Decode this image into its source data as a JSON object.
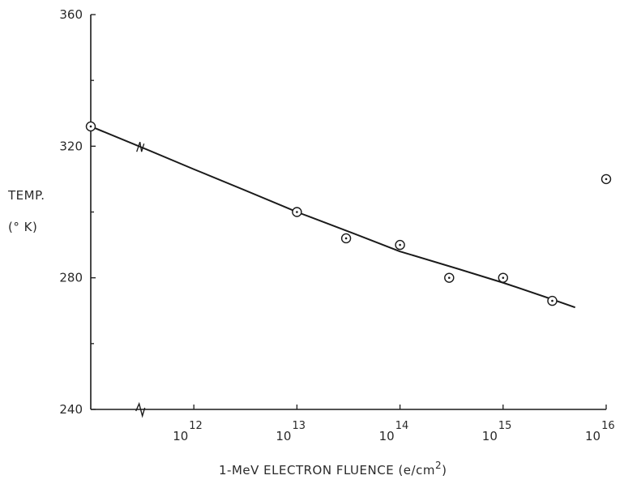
{
  "chart_data": {
    "type": "scatter",
    "title": "",
    "xlabel": "1-MeV ELECTRON FLUENCE (e/cm2)",
    "xlabel_main": "1-MeV ELECTRON FLUENCE (e/cm",
    "xlabel_sup": "2",
    "xlabel_tail": ")",
    "ylabel_line1": "TEMP.",
    "ylabel_line2": "(° K)",
    "x_scale": "log",
    "xlim": [
      "10^11",
      "10^16"
    ],
    "ylim": [
      240,
      360
    ],
    "y_ticks": [
      240,
      280,
      320,
      360
    ],
    "x_ticks": [
      {
        "base": "10",
        "exp": "12",
        "value": 1000000000000.0
      },
      {
        "base": "10",
        "exp": "13",
        "value": 10000000000000.0
      },
      {
        "base": "10",
        "exp": "14",
        "value": 100000000000000.0
      },
      {
        "base": "10",
        "exp": "15",
        "value": 1000000000000000.0
      },
      {
        "base": "10",
        "exp": "16",
        "value": 1e+16
      }
    ],
    "axis_breaks": "x-axis and y-axis broken near 3×10^11",
    "grid": false,
    "legend": "none",
    "series": [
      {
        "kind": "measured points",
        "marker": "circle-dot",
        "points": [
          {
            "x": 100000000000.0,
            "y": 326
          },
          {
            "x": 10000000000000.0,
            "y": 300
          },
          {
            "x": 30000000000000.0,
            "y": 292
          },
          {
            "x": 100000000000000.0,
            "y": 290
          },
          {
            "x": 300000000000000.0,
            "y": 280
          },
          {
            "x": 1000000000000000.0,
            "y": 280
          },
          {
            "x": 3000000000000000.0,
            "y": 273
          },
          {
            "x": 1e+16,
            "y": 310
          }
        ]
      },
      {
        "kind": "fitted curve",
        "points": [
          {
            "x": 100000000000.0,
            "y": 326
          },
          {
            "x": 1000000000000.0,
            "y": 313
          },
          {
            "x": 10000000000000.0,
            "y": 300
          },
          {
            "x": 100000000000000.0,
            "y": 288
          },
          {
            "x": 1000000000000000.0,
            "y": 278.5
          },
          {
            "x": 5000000000000000.0,
            "y": 271
          }
        ]
      }
    ]
  }
}
